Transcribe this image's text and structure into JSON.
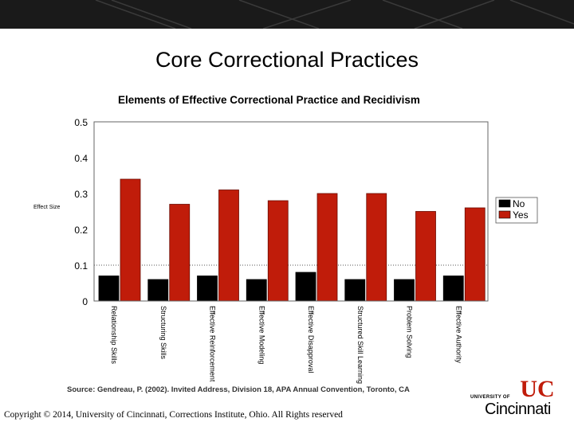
{
  "slide": {
    "title": "Core Correctional Practices",
    "source": "Source: Gendreau, P. (2002). Invited Address, Division 18, APA Annual Convention, Toronto, CA",
    "copyright": "Copyright © 2014, University of Cincinnati, Corrections Institute, Ohio. All Rights reserved",
    "logo": {
      "university": "UNIVERSITY OF",
      "name": "Cincinnati",
      "mark": "UC"
    }
  },
  "colors": {
    "no": "#000000",
    "yes": "#c01c0a",
    "banner": "#1a1a1a"
  },
  "chart_data": {
    "type": "bar",
    "title": "Elements of Effective Correctional Practice and Recidivism",
    "ylabel": "Effect Size",
    "xlabel": "",
    "ylim": [
      0,
      0.5
    ],
    "yticks": [
      "0",
      "0.1",
      "0.2",
      "0.3",
      "0.4",
      "0.5"
    ],
    "reference_line": 0.1,
    "legend_position": "right",
    "categories": [
      "Relationship Skills",
      "Structuring Skills",
      "Effective Reinforcement",
      "Effective Modeling",
      "Effective Disapproval",
      "Structured Skill Learning",
      "Problem Solving",
      "Effective Authority"
    ],
    "series": [
      {
        "name": "No",
        "values": [
          0.07,
          0.06,
          0.07,
          0.06,
          0.08,
          0.06,
          0.06,
          0.07
        ]
      },
      {
        "name": "Yes",
        "values": [
          0.34,
          0.27,
          0.31,
          0.28,
          0.3,
          0.3,
          0.25,
          0.26
        ]
      }
    ]
  }
}
